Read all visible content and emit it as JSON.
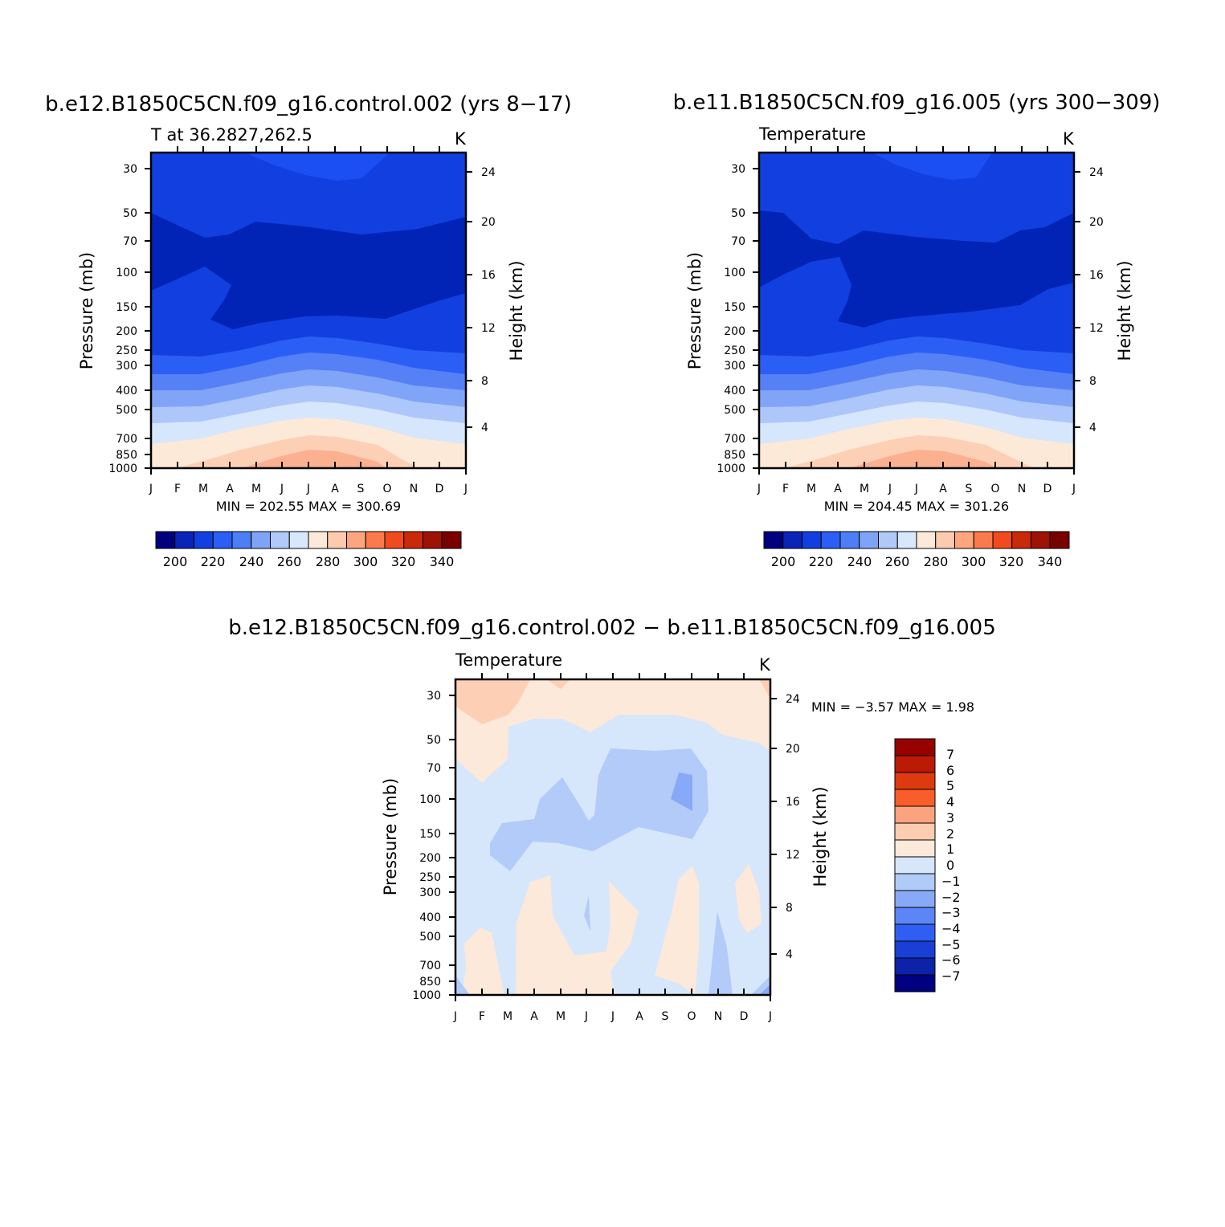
{
  "chart_data": [
    {
      "type": "heatmap",
      "panel": "top-left",
      "title": "b.e12.B1850C5CN.f09_g16.control.002 (yrs 8−17)",
      "subtitle": "T at 36.2827,262.5",
      "units": "K",
      "ylabel": "Pressure (mb)",
      "y2label": "Height (km)",
      "xticks": [
        "J",
        "F",
        "M",
        "A",
        "M",
        "J",
        "J",
        "A",
        "S",
        "O",
        "N",
        "D",
        "J"
      ],
      "pressure_ticks": [
        "30",
        "50",
        "70",
        "100",
        "150",
        "200",
        "250",
        "300",
        "400",
        "500",
        "700",
        "850",
        "1000"
      ],
      "height_ticks": [
        "24",
        "20",
        "16",
        "12",
        "8",
        "4"
      ],
      "stats": "MIN = 202.55 MAX = 300.69",
      "colorbar": {
        "orientation": "horizontal",
        "labels": [
          "200",
          "220",
          "240",
          "260",
          "280",
          "300",
          "320",
          "340"
        ],
        "colors": [
          "#00007f",
          "#0b24b8",
          "#1240e0",
          "#2b5ef5",
          "#4d7ef5",
          "#7fa3f7",
          "#b1c9f9",
          "#d8e8fc",
          "#fde9d9",
          "#fdcab0",
          "#fca57f",
          "#fb7a4c",
          "#f04a1e",
          "#c92a0a",
          "#9d1305",
          "#7a0000"
        ]
      },
      "bands": [
        "#0224b6",
        "#0226c0",
        "#1240e0",
        "#2b5ef5",
        "#5580f6",
        "#80a4f8",
        "#adc7fa",
        "#d5e6fd",
        "#fde9d8",
        "#fdd0b6",
        "#fbb090"
      ]
    },
    {
      "type": "heatmap",
      "panel": "top-right",
      "title": "b.e11.B1850C5CN.f09_g16.005 (yrs 300−309)",
      "subtitle": "Temperature",
      "units": "K",
      "ylabel": "Pressure (mb)",
      "y2label": "Height (km)",
      "xticks": [
        "J",
        "F",
        "M",
        "A",
        "M",
        "J",
        "J",
        "A",
        "S",
        "O",
        "N",
        "D",
        "J"
      ],
      "pressure_ticks": [
        "30",
        "50",
        "70",
        "100",
        "150",
        "200",
        "250",
        "300",
        "400",
        "500",
        "700",
        "850",
        "1000"
      ],
      "height_ticks": [
        "24",
        "20",
        "16",
        "12",
        "8",
        "4"
      ],
      "stats": "MIN = 204.45 MAX = 301.26",
      "colorbar": {
        "orientation": "horizontal",
        "labels": [
          "200",
          "220",
          "240",
          "260",
          "280",
          "300",
          "320",
          "340"
        ],
        "colors": [
          "#00007f",
          "#0b24b8",
          "#1240e0",
          "#2b5ef5",
          "#4d7ef5",
          "#7fa3f7",
          "#b1c9f9",
          "#d8e8fc",
          "#fde9d9",
          "#fdcab0",
          "#fca57f",
          "#fb7a4c",
          "#f04a1e",
          "#c92a0a",
          "#9d1305",
          "#7a0000"
        ]
      },
      "bands": [
        "#0224b6",
        "#0226c0",
        "#1240e0",
        "#2b5ef5",
        "#5580f6",
        "#80a4f8",
        "#adc7fa",
        "#d5e6fd",
        "#fde9d8",
        "#fdd0b6",
        "#fbb090"
      ]
    },
    {
      "type": "heatmap",
      "panel": "bottom",
      "title": "b.e12.B1850C5CN.f09_g16.control.002 − b.e11.B1850C5CN.f09_g16.005",
      "subtitle": "Temperature",
      "units": "K",
      "ylabel": "Pressure (mb)",
      "y2label": "Height (km)",
      "xticks": [
        "J",
        "F",
        "M",
        "A",
        "M",
        "J",
        "J",
        "A",
        "S",
        "O",
        "N",
        "D",
        "J"
      ],
      "pressure_ticks": [
        "30",
        "50",
        "70",
        "100",
        "150",
        "200",
        "250",
        "300",
        "400",
        "500",
        "700",
        "850",
        "1000"
      ],
      "height_ticks": [
        "24",
        "20",
        "16",
        "12",
        "8",
        "4"
      ],
      "stats": "MIN = −3.57 MAX = 1.98",
      "colorbar": {
        "orientation": "vertical",
        "labels": [
          "7",
          "6",
          "5",
          "4",
          "3",
          "2",
          "1",
          "0",
          "−1",
          "−2",
          "−3",
          "−4",
          "−5",
          "−6",
          "−7"
        ],
        "colors": [
          "#990000",
          "#bb1a07",
          "#dd3a10",
          "#f85e2a",
          "#fba37f",
          "#fdcdb0",
          "#fde9d9",
          "#d6e7fc",
          "#b1cbf9",
          "#87a9f8",
          "#5c85f5",
          "#2f5ff2",
          "#1a3fd4",
          "#0c22a8",
          "#000080"
        ]
      },
      "background": "#d6e7fc"
    }
  ]
}
